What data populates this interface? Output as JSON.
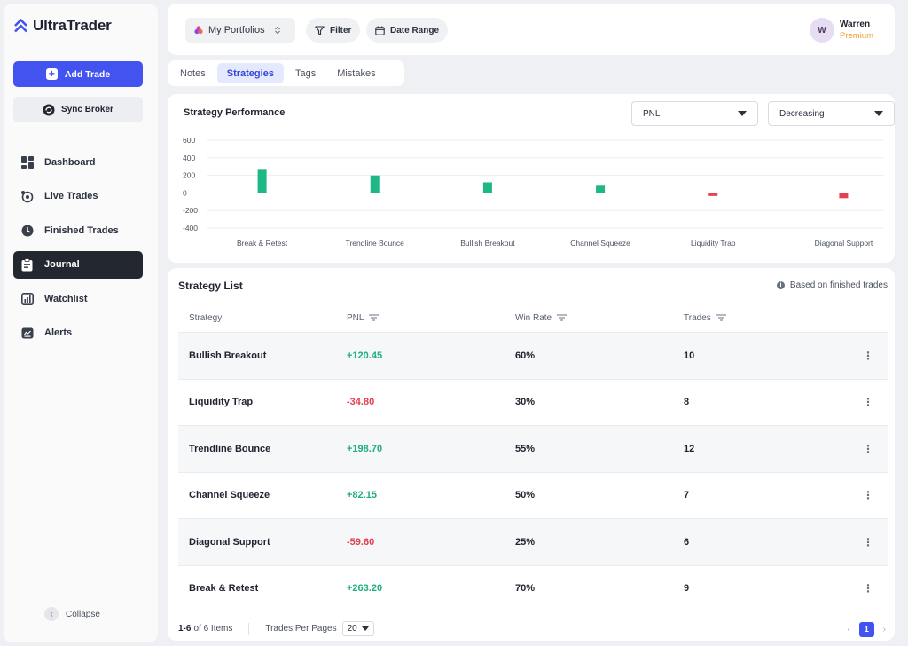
{
  "app": {
    "name": "UltraTrader"
  },
  "sidebar": {
    "add_trade": "Add Trade",
    "sync_broker": "Sync Broker",
    "items": [
      {
        "label": "Dashboard",
        "icon": "dashboard-icon"
      },
      {
        "label": "Live Trades",
        "icon": "live-trades-icon"
      },
      {
        "label": "Finished Trades",
        "icon": "clock-icon"
      },
      {
        "label": "Journal",
        "icon": "clipboard-icon",
        "active": true
      },
      {
        "label": "Watchlist",
        "icon": "chart-icon"
      },
      {
        "label": "Alerts",
        "icon": "alert-icon"
      }
    ],
    "collapse": "Collapse"
  },
  "topbar": {
    "portfolio": "My Portfolios",
    "filter": "Filter",
    "date_range": "Date Range",
    "user": {
      "initial": "W",
      "name": "Warren",
      "tier": "Premium"
    }
  },
  "tabs": [
    "Notes",
    "Strategies",
    "Tags",
    "Mistakes"
  ],
  "active_tab": "Strategies",
  "chart_section": {
    "title": "Strategy Performance",
    "metric": "PNL",
    "order": "Decreasing"
  },
  "chart_data": {
    "type": "bar",
    "categories": [
      "Break & Retest",
      "Trendline Bounce",
      "Bullish Breakout",
      "Channel Squeeze",
      "Liquidity Trap",
      "Diagonal Support"
    ],
    "values": [
      263.2,
      198.7,
      120.45,
      82.15,
      -34.8,
      -59.6
    ],
    "title": "Strategy Performance",
    "ylim": [
      -400,
      600
    ],
    "yticks": [
      "600",
      "400",
      "200",
      "0",
      "-200",
      "-400"
    ],
    "ytick_values": [
      600,
      400,
      200,
      0,
      -200,
      -400
    ],
    "grid": true,
    "colors": {
      "positive": "#1db886",
      "negative": "#e3414d"
    }
  },
  "list": {
    "title": "Strategy List",
    "note": "Based on finished trades",
    "columns": [
      "Strategy",
      "PNL",
      "Win Rate",
      "Trades"
    ],
    "rows": [
      {
        "strategy": "Bullish Breakout",
        "pnl": "+120.45",
        "win_rate": "60%",
        "trades": "10",
        "sign": "pos"
      },
      {
        "strategy": "Liquidity Trap",
        "pnl": "-34.80",
        "win_rate": "30%",
        "trades": "8",
        "sign": "neg"
      },
      {
        "strategy": "Trendline Bounce",
        "pnl": "+198.70",
        "win_rate": "55%",
        "trades": "12",
        "sign": "pos"
      },
      {
        "strategy": "Channel Squeeze",
        "pnl": "+82.15",
        "win_rate": "50%",
        "trades": "7",
        "sign": "pos"
      },
      {
        "strategy": "Diagonal Support",
        "pnl": "-59.60",
        "win_rate": "25%",
        "trades": "6",
        "sign": "neg"
      },
      {
        "strategy": "Break & Retest",
        "pnl": "+263.20",
        "win_rate": "70%",
        "trades": "9",
        "sign": "pos"
      }
    ],
    "footer": {
      "range": "1-6",
      "of": "of 6 Items",
      "per_page_label": "Trades Per Pages",
      "per_page_value": "20",
      "current_page": "1"
    }
  }
}
